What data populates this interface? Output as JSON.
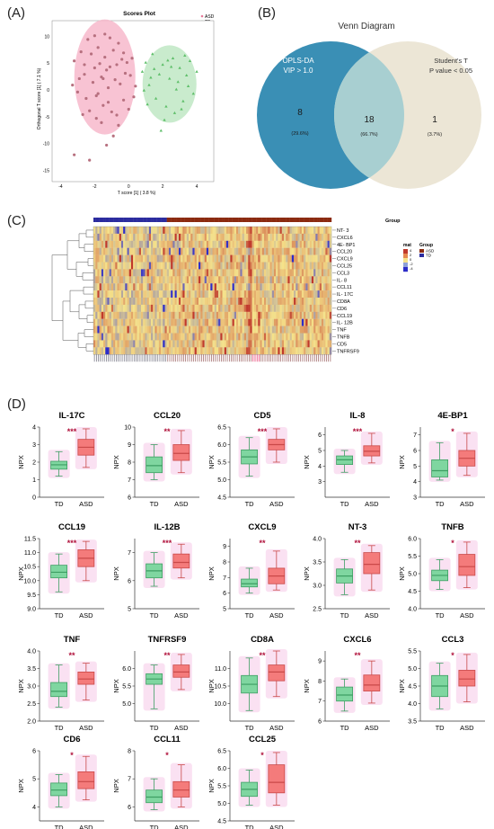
{
  "panels": {
    "a": "(A)",
    "b": "(B)",
    "c": "(C)",
    "d": "(D)"
  },
  "scores_plot": {
    "title": "Scores Plot",
    "xlabel": "T score [1] ( 3.8 %)",
    "ylabel": "Orthogonal T score [1] ( 7.1 %)",
    "legend": [
      {
        "label": "ASD",
        "color": "#e87a9a"
      },
      {
        "label": "TD",
        "color": "#5fc76a"
      }
    ],
    "xticks": [
      "-4",
      "-2",
      "0",
      "2",
      "4"
    ],
    "yticks": [
      "10",
      "5",
      "0",
      "-5",
      "-10",
      "-15"
    ],
    "xlim": [
      -4.5,
      5
    ],
    "ylim": [
      -17,
      13
    ],
    "asd_points": [
      [
        -3.2,
        5.5
      ],
      [
        -2.8,
        7.2
      ],
      [
        -2.6,
        3.0
      ],
      [
        -2.4,
        9.5
      ],
      [
        -2.2,
        6.8
      ],
      [
        -2.1,
        1.5
      ],
      [
        -2.0,
        4.2
      ],
      [
        -1.9,
        -1.0
      ],
      [
        -1.8,
        8.0
      ],
      [
        -1.7,
        5.0
      ],
      [
        -1.6,
        2.5
      ],
      [
        -1.5,
        -2.8
      ],
      [
        -1.4,
        6.2
      ],
      [
        -1.3,
        3.8
      ],
      [
        -1.2,
        0.5
      ],
      [
        -1.1,
        9.8
      ],
      [
        -1.0,
        -4.0
      ],
      [
        -0.9,
        7.5
      ],
      [
        -0.8,
        2.0
      ],
      [
        -0.7,
        4.8
      ],
      [
        -0.6,
        -6.5
      ],
      [
        -0.5,
        1.2
      ],
      [
        -0.4,
        5.8
      ],
      [
        -0.3,
        -1.8
      ],
      [
        -0.2,
        3.2
      ],
      [
        0.0,
        -3.5
      ],
      [
        0.2,
        6.0
      ],
      [
        0.4,
        0.8
      ],
      [
        -2.5,
        -1.5
      ],
      [
        -2.9,
        2.2
      ],
      [
        -1.6,
        -6.0
      ],
      [
        -0.9,
        -8.5
      ],
      [
        -1.4,
        10.5
      ],
      [
        -2.3,
        -3.8
      ],
      [
        -3.0,
        -0.3
      ],
      [
        -0.6,
        8.8
      ],
      [
        0.1,
        2.8
      ],
      [
        -1.1,
        4.4
      ],
      [
        -1.9,
        -5.2
      ],
      [
        -2.6,
        4.8
      ],
      [
        -1.2,
        -2.2
      ],
      [
        0.3,
        -1.2
      ],
      [
        -0.3,
        7.0
      ],
      [
        -1.8,
        -0.6
      ],
      [
        -0.7,
        -4.6
      ],
      [
        -2.0,
        10.2
      ],
      [
        -3.3,
        1.0
      ],
      [
        -0.1,
        5.2
      ],
      [
        -1.5,
        2.2
      ],
      [
        -2.7,
        -4.5
      ],
      [
        -2.3,
        -13.0
      ],
      [
        -3.2,
        -12.0
      ],
      [
        -1.3,
        -10.2
      ]
    ],
    "td_points": [
      [
        0.8,
        3.5
      ],
      [
        1.0,
        5.2
      ],
      [
        1.2,
        1.0
      ],
      [
        1.4,
        6.8
      ],
      [
        1.6,
        -1.5
      ],
      [
        1.8,
        3.0
      ],
      [
        2.0,
        4.8
      ],
      [
        2.2,
        -3.0
      ],
      [
        2.4,
        2.2
      ],
      [
        2.6,
        6.0
      ],
      [
        2.8,
        0.2
      ],
      [
        3.0,
        4.2
      ],
      [
        3.2,
        -2.0
      ],
      [
        3.4,
        2.8
      ],
      [
        3.6,
        5.5
      ],
      [
        3.8,
        -0.6
      ],
      [
        4.0,
        3.5
      ],
      [
        2.1,
        -5.5
      ],
      [
        1.5,
        4.0
      ],
      [
        2.7,
        -4.2
      ],
      [
        3.3,
        6.5
      ],
      [
        1.1,
        -2.6
      ],
      [
        2.9,
        1.6
      ],
      [
        1.9,
        -7.5
      ],
      [
        3.5,
        0.8
      ],
      [
        1.3,
        2.4
      ],
      [
        2.5,
        4.4
      ],
      [
        0.9,
        0.0
      ],
      [
        3.1,
        -3.5
      ],
      [
        2.3,
        5.6
      ]
    ]
  },
  "venn": {
    "title": "Venn Diagram",
    "left_label_1": "OPLS-DA",
    "left_label_2": "VIP > 1.0",
    "right_label_1": "Student's T",
    "right_label_2": "P value < 0.05",
    "left_count": "8",
    "left_pct": "(29.6%)",
    "mid_count": "18",
    "mid_pct": "(66.7%)",
    "right_count": "1",
    "right_pct": "(3.7%)",
    "colors": {
      "left": "#3a8fb5",
      "right": "#ece6d6",
      "mid": "#a8cfd1"
    }
  },
  "heatmap": {
    "rows": [
      "NT- 3",
      "CXCL6",
      "4E- BP1",
      "CCL20",
      "CXCL9",
      "CCL25",
      "CCL3",
      "IL- 8",
      "CCL11",
      "IL- 17C",
      "CD8A",
      "CD6",
      "CCL19",
      "IL- 12B",
      "TNF",
      "TNFB",
      "CD5",
      "TNFRSF9"
    ],
    "group_label": "Group",
    "legend_mat_title": "mat",
    "legend_mat_ticks": [
      "4",
      "2",
      "0",
      "-2",
      "-4"
    ],
    "legend_group_title": "Group",
    "legend_groups": [
      "ASD",
      "TD"
    ],
    "td_count": 37,
    "asd_count": 83,
    "colors": {
      "td": "#2b2b9e",
      "asd": "#8b2a10",
      "low": "#2d2dc8",
      "mid": "#f5e28a",
      "high": "#c0392b"
    }
  },
  "chart_data": [
    {
      "type": "box",
      "title": "IL-17C",
      "sig": "***",
      "xlabel": "",
      "ylabel": "NPX",
      "categories": [
        "TD",
        "ASD"
      ],
      "ylim": [
        0,
        4
      ],
      "yticks": [
        "0",
        "1",
        "2",
        "3",
        "4"
      ],
      "td": {
        "min": 1.2,
        "q1": 1.6,
        "median": 1.85,
        "q3": 2.05,
        "max": 2.6
      },
      "asd": {
        "min": 1.7,
        "q1": 2.4,
        "median": 2.85,
        "q3": 3.3,
        "max": 3.9
      }
    },
    {
      "type": "box",
      "title": "CCL20",
      "sig": "**",
      "xlabel": "",
      "ylabel": "NPX",
      "categories": [
        "TD",
        "ASD"
      ],
      "ylim": [
        6,
        10
      ],
      "yticks": [
        "6",
        "7",
        "8",
        "9",
        "10"
      ],
      "td": {
        "min": 7.0,
        "q1": 7.4,
        "median": 7.8,
        "q3": 8.3,
        "max": 9.0
      },
      "asd": {
        "min": 7.4,
        "q1": 8.1,
        "median": 8.5,
        "q3": 9.0,
        "max": 9.8
      }
    },
    {
      "type": "box",
      "title": "CD5",
      "sig": "***",
      "xlabel": "",
      "ylabel": "NPX",
      "categories": [
        "TD",
        "ASD"
      ],
      "ylim": [
        4.5,
        6.5
      ],
      "yticks": [
        "4.5",
        "5.0",
        "5.5",
        "6.0",
        "6.5"
      ],
      "td": {
        "min": 5.1,
        "q1": 5.45,
        "median": 5.65,
        "q3": 5.85,
        "max": 6.2
      },
      "asd": {
        "min": 5.5,
        "q1": 5.85,
        "median": 6.0,
        "q3": 6.15,
        "max": 6.45
      }
    },
    {
      "type": "box",
      "title": "IL-8",
      "sig": "***",
      "xlabel": "",
      "ylabel": "NPX",
      "categories": [
        "TD",
        "ASD"
      ],
      "ylim": [
        2,
        6.5
      ],
      "yticks": [
        "3",
        "4",
        "5",
        "6"
      ],
      "td": {
        "min": 3.6,
        "q1": 4.1,
        "median": 4.4,
        "q3": 4.65,
        "max": 5.0
      },
      "asd": {
        "min": 4.2,
        "q1": 4.65,
        "median": 4.95,
        "q3": 5.3,
        "max": 6.1
      }
    },
    {
      "type": "box",
      "title": "4E-BP1",
      "sig": "*",
      "xlabel": "",
      "ylabel": "NPX",
      "categories": [
        "TD",
        "ASD"
      ],
      "ylim": [
        3,
        7.5
      ],
      "yticks": [
        "3",
        "4",
        "5",
        "6",
        "7"
      ],
      "td": {
        "min": 4.1,
        "q1": 4.3,
        "median": 4.7,
        "q3": 5.4,
        "max": 6.5
      },
      "asd": {
        "min": 4.4,
        "q1": 5.0,
        "median": 5.5,
        "q3": 6.0,
        "max": 7.1
      }
    },
    {
      "type": "box",
      "title": "CCL19",
      "sig": "***",
      "xlabel": "",
      "ylabel": "NPX",
      "categories": [
        "TD",
        "ASD"
      ],
      "ylim": [
        9,
        11.5
      ],
      "yticks": [
        "9.0",
        "9.5",
        "10.0",
        "10.5",
        "11.0",
        "11.5"
      ],
      "td": {
        "min": 9.6,
        "q1": 10.1,
        "median": 10.3,
        "q3": 10.55,
        "max": 10.95
      },
      "asd": {
        "min": 10.0,
        "q1": 10.5,
        "median": 10.8,
        "q3": 11.1,
        "max": 11.4
      }
    },
    {
      "type": "box",
      "title": "IL-12B",
      "sig": "***",
      "xlabel": "",
      "ylabel": "NPX",
      "categories": [
        "TD",
        "ASD"
      ],
      "ylim": [
        5,
        7.5
      ],
      "yticks": [
        "5",
        "6",
        "7"
      ],
      "td": {
        "min": 5.8,
        "q1": 6.1,
        "median": 6.35,
        "q3": 6.6,
        "max": 7.0
      },
      "asd": {
        "min": 6.1,
        "q1": 6.45,
        "median": 6.65,
        "q3": 6.95,
        "max": 7.3
      }
    },
    {
      "type": "box",
      "title": "CXCL9",
      "sig": "**",
      "xlabel": "",
      "ylabel": "NPX",
      "categories": [
        "TD",
        "ASD"
      ],
      "ylim": [
        5,
        9.5
      ],
      "yticks": [
        "5",
        "6",
        "7",
        "8",
        "9"
      ],
      "td": {
        "min": 6.0,
        "q1": 6.4,
        "median": 6.6,
        "q3": 6.9,
        "max": 7.6
      },
      "asd": {
        "min": 6.2,
        "q1": 6.6,
        "median": 7.1,
        "q3": 7.6,
        "max": 8.7
      }
    },
    {
      "type": "box",
      "title": "NT-3",
      "sig": "**",
      "xlabel": "",
      "ylabel": "NPX",
      "categories": [
        "TD",
        "ASD"
      ],
      "ylim": [
        2.5,
        4
      ],
      "yticks": [
        "2.5",
        "3.0",
        "3.5",
        "4.0"
      ],
      "td": {
        "min": 2.8,
        "q1": 3.05,
        "median": 3.2,
        "q3": 3.35,
        "max": 3.55
      },
      "asd": {
        "min": 2.9,
        "q1": 3.25,
        "median": 3.45,
        "q3": 3.7,
        "max": 3.85
      }
    },
    {
      "type": "box",
      "title": "TNFB",
      "sig": "*",
      "xlabel": "",
      "ylabel": "NPX",
      "categories": [
        "TD",
        "ASD"
      ],
      "ylim": [
        4,
        6
      ],
      "yticks": [
        "4.0",
        "4.5",
        "5.0",
        "5.5",
        "6.0"
      ],
      "td": {
        "min": 4.55,
        "q1": 4.8,
        "median": 4.95,
        "q3": 5.1,
        "max": 5.4
      },
      "asd": {
        "min": 4.6,
        "q1": 4.95,
        "median": 5.2,
        "q3": 5.55,
        "max": 5.9
      }
    },
    {
      "type": "box",
      "title": "TNF",
      "sig": "**",
      "xlabel": "",
      "ylabel": "NPX",
      "categories": [
        "TD",
        "ASD"
      ],
      "ylim": [
        2,
        4
      ],
      "yticks": [
        "2.0",
        "2.5",
        "3.0",
        "3.5",
        "4.0"
      ],
      "td": {
        "min": 2.4,
        "q1": 2.7,
        "median": 2.85,
        "q3": 3.1,
        "max": 3.6
      },
      "asd": {
        "min": 2.6,
        "q1": 3.05,
        "median": 3.2,
        "q3": 3.4,
        "max": 3.65
      }
    },
    {
      "type": "box",
      "title": "TNFRSF9",
      "sig": "**",
      "xlabel": "",
      "ylabel": "NPX",
      "categories": [
        "TD",
        "ASD"
      ],
      "ylim": [
        4.5,
        6.5
      ],
      "yticks": [
        "5.0",
        "5.5",
        "6.0"
      ],
      "td": {
        "min": 4.85,
        "q1": 5.55,
        "median": 5.7,
        "q3": 5.85,
        "max": 6.1
      },
      "asd": {
        "min": 5.4,
        "q1": 5.75,
        "median": 5.9,
        "q3": 6.1,
        "max": 6.4
      }
    },
    {
      "type": "box",
      "title": "CD8A",
      "sig": "**",
      "xlabel": "",
      "ylabel": "NPX",
      "categories": [
        "TD",
        "ASD"
      ],
      "ylim": [
        9.5,
        11.5
      ],
      "yticks": [
        "10.0",
        "10.5",
        "11.0"
      ],
      "td": {
        "min": 9.8,
        "q1": 10.3,
        "median": 10.55,
        "q3": 10.8,
        "max": 11.3
      },
      "asd": {
        "min": 10.2,
        "q1": 10.65,
        "median": 10.9,
        "q3": 11.1,
        "max": 11.5
      }
    },
    {
      "type": "box",
      "title": "CXCL6",
      "sig": "**",
      "xlabel": "",
      "ylabel": "NPX",
      "categories": [
        "TD",
        "ASD"
      ],
      "ylim": [
        6,
        9.5
      ],
      "yticks": [
        "6",
        "7",
        "8",
        "9"
      ],
      "td": {
        "min": 6.5,
        "q1": 7.0,
        "median": 7.3,
        "q3": 7.7,
        "max": 8.1
      },
      "asd": {
        "min": 6.9,
        "q1": 7.5,
        "median": 7.8,
        "q3": 8.3,
        "max": 9.0
      }
    },
    {
      "type": "box",
      "title": "CCL3",
      "sig": "*",
      "xlabel": "",
      "ylabel": "NPX",
      "categories": [
        "TD",
        "ASD"
      ],
      "ylim": [
        3.5,
        5.5
      ],
      "yticks": [
        "3.5",
        "4.0",
        "4.5",
        "5.0",
        "5.5"
      ],
      "td": {
        "min": 3.85,
        "q1": 4.2,
        "median": 4.5,
        "q3": 4.8,
        "max": 5.15
      },
      "asd": {
        "min": 4.05,
        "q1": 4.5,
        "median": 4.7,
        "q3": 4.95,
        "max": 5.4
      }
    },
    {
      "type": "box",
      "title": "CD6",
      "sig": "*",
      "xlabel": "",
      "ylabel": "NPX",
      "categories": [
        "TD",
        "ASD"
      ],
      "ylim": [
        3.5,
        6
      ],
      "yticks": [
        "4",
        "5",
        "6"
      ],
      "td": {
        "min": 4.0,
        "q1": 4.4,
        "median": 4.6,
        "q3": 4.85,
        "max": 5.15
      },
      "asd": {
        "min": 4.25,
        "q1": 4.65,
        "median": 4.9,
        "q3": 5.25,
        "max": 5.8
      }
    },
    {
      "type": "box",
      "title": "CCL11",
      "sig": "*",
      "xlabel": "",
      "ylabel": "NPX",
      "categories": [
        "TD",
        "ASD"
      ],
      "ylim": [
        5.5,
        8
      ],
      "yticks": [
        "6",
        "7",
        "8"
      ],
      "td": {
        "min": 5.9,
        "q1": 6.15,
        "median": 6.35,
        "q3": 6.6,
        "max": 7.0
      },
      "asd": {
        "min": 6.0,
        "q1": 6.35,
        "median": 6.6,
        "q3": 6.9,
        "max": 7.5
      }
    },
    {
      "type": "box",
      "title": "CCL25",
      "sig": "*",
      "xlabel": "",
      "ylabel": "NPX",
      "categories": [
        "TD",
        "ASD"
      ],
      "ylim": [
        4.5,
        6.5
      ],
      "yticks": [
        "4.5",
        "5.0",
        "5.5",
        "6.0",
        "6.5"
      ],
      "td": {
        "min": 4.95,
        "q1": 5.2,
        "median": 5.4,
        "q3": 5.6,
        "max": 5.95
      },
      "asd": {
        "min": 4.95,
        "q1": 5.3,
        "median": 5.6,
        "q3": 6.1,
        "max": 6.45
      }
    }
  ],
  "box_colors": {
    "td_fill": "#7fd6a0",
    "td_line": "#3e9e63",
    "asd_fill": "#f47b7b",
    "asd_line": "#c94949",
    "halo": "#f9d9ef"
  }
}
